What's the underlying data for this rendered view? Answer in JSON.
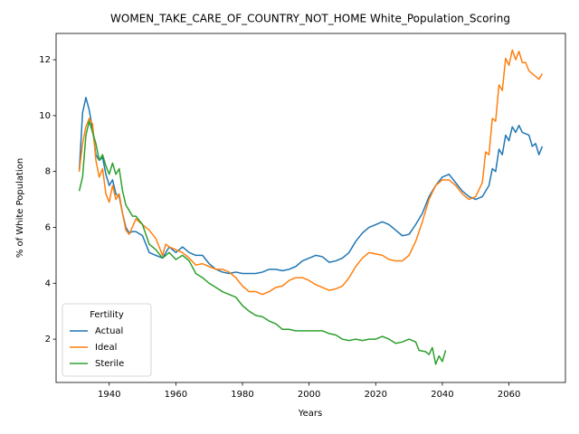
{
  "chart_data": {
    "type": "line",
    "title": "WOMEN_TAKE_CARE_OF_COUNTRY_NOT_HOME White_Population_Scoring",
    "x_label": "Years",
    "y_label": "% of White Population",
    "legend_title": "Fertility",
    "legend_position": "lower left",
    "grid": false,
    "xlim": [
      1924.05,
      2076.95
    ],
    "ylim": [
      0.45,
      12.94
    ],
    "xticks": [
      1940,
      1960,
      1980,
      2000,
      2020,
      2040,
      2060
    ],
    "yticks": [
      2,
      4,
      6,
      8,
      10,
      12
    ],
    "series": [
      {
        "name": "Actual",
        "color": "#1f77b4",
        "x": [
          1931,
          1932,
          1933,
          1934,
          1935,
          1936,
          1937,
          1938,
          1939,
          1940,
          1941,
          1942,
          1943,
          1944,
          1945,
          1946,
          1947,
          1948,
          1950,
          1952,
          1954,
          1956,
          1958,
          1960,
          1962,
          1964,
          1966,
          1968,
          1970,
          1972,
          1974,
          1976,
          1978,
          1980,
          1982,
          1984,
          1986,
          1988,
          1990,
          1992,
          1994,
          1996,
          1998,
          2000,
          2002,
          2004,
          2006,
          2008,
          2010,
          2012,
          2014,
          2016,
          2018,
          2020,
          2022,
          2024,
          2026,
          2028,
          2030,
          2032,
          2034,
          2036,
          2038,
          2040,
          2042,
          2044,
          2046,
          2048,
          2050,
          2052,
          2054,
          2055,
          2056,
          2057,
          2058,
          2059,
          2060,
          2061,
          2062,
          2063,
          2064,
          2066,
          2067,
          2068,
          2069,
          2070
        ],
        "values": [
          8.0,
          10.1,
          10.65,
          10.2,
          9.5,
          8.6,
          8.4,
          8.5,
          7.9,
          7.5,
          7.7,
          7.2,
          7.1,
          6.5,
          6.0,
          5.8,
          5.85,
          5.85,
          5.7,
          5.1,
          5.0,
          4.9,
          5.3,
          5.1,
          5.3,
          5.1,
          5.0,
          5.0,
          4.7,
          4.5,
          4.4,
          4.35,
          4.4,
          4.35,
          4.35,
          4.35,
          4.4,
          4.5,
          4.5,
          4.45,
          4.5,
          4.6,
          4.8,
          4.9,
          5.0,
          4.95,
          4.75,
          4.8,
          4.9,
          5.1,
          5.5,
          5.8,
          6.0,
          6.1,
          6.2,
          6.1,
          5.9,
          5.7,
          5.75,
          6.1,
          6.5,
          7.1,
          7.5,
          7.8,
          7.9,
          7.6,
          7.3,
          7.1,
          7.0,
          7.1,
          7.5,
          8.1,
          8.0,
          8.8,
          8.6,
          9.3,
          9.1,
          9.6,
          9.4,
          9.65,
          9.4,
          9.3,
          8.9,
          9.0,
          8.6,
          8.9
        ]
      },
      {
        "name": "Ideal",
        "color": "#ff7f0e",
        "x": [
          1931,
          1932,
          1933,
          1934,
          1935,
          1936,
          1937,
          1938,
          1939,
          1940,
          1941,
          1942,
          1943,
          1944,
          1945,
          1946,
          1948,
          1950,
          1952,
          1954,
          1956,
          1957,
          1958,
          1960,
          1962,
          1964,
          1966,
          1968,
          1970,
          1972,
          1974,
          1976,
          1978,
          1980,
          1982,
          1984,
          1986,
          1988,
          1990,
          1992,
          1994,
          1996,
          1998,
          2000,
          2002,
          2004,
          2006,
          2008,
          2010,
          2012,
          2014,
          2016,
          2018,
          2020,
          2022,
          2024,
          2026,
          2028,
          2030,
          2032,
          2034,
          2036,
          2038,
          2040,
          2042,
          2044,
          2046,
          2048,
          2050,
          2052,
          2053,
          2054,
          2055,
          2056,
          2057,
          2058,
          2059,
          2060,
          2061,
          2062,
          2063,
          2064,
          2065,
          2066,
          2068,
          2069,
          2070
        ],
        "values": [
          8.0,
          9.0,
          9.6,
          9.9,
          9.7,
          8.4,
          7.8,
          8.1,
          7.2,
          6.9,
          7.5,
          7.0,
          7.2,
          6.5,
          5.9,
          5.75,
          6.3,
          6.1,
          5.9,
          5.6,
          5.0,
          5.4,
          5.3,
          5.2,
          5.1,
          4.9,
          4.65,
          4.7,
          4.6,
          4.5,
          4.5,
          4.4,
          4.2,
          3.9,
          3.7,
          3.7,
          3.6,
          3.7,
          3.85,
          3.9,
          4.1,
          4.2,
          4.2,
          4.1,
          3.95,
          3.85,
          3.75,
          3.8,
          3.9,
          4.2,
          4.6,
          4.9,
          5.1,
          5.05,
          5.0,
          4.85,
          4.8,
          4.8,
          5.0,
          5.5,
          6.2,
          7.0,
          7.5,
          7.7,
          7.7,
          7.5,
          7.2,
          7.0,
          7.1,
          7.6,
          8.7,
          8.6,
          9.9,
          9.8,
          11.1,
          10.9,
          12.05,
          11.8,
          12.35,
          12.0,
          12.3,
          11.9,
          11.9,
          11.6,
          11.4,
          11.3,
          11.5
        ]
      },
      {
        "name": "Sterile",
        "color": "#2ca02c",
        "x": [
          1931,
          1932,
          1933,
          1934,
          1935,
          1936,
          1937,
          1938,
          1939,
          1940,
          1941,
          1942,
          1943,
          1944,
          1945,
          1946,
          1947,
          1948,
          1950,
          1952,
          1954,
          1956,
          1958,
          1960,
          1962,
          1964,
          1966,
          1968,
          1970,
          1972,
          1974,
          1976,
          1978,
          1980,
          1982,
          1984,
          1986,
          1988,
          1990,
          1992,
          1994,
          1996,
          1998,
          2000,
          2002,
          2004,
          2006,
          2008,
          2010,
          2012,
          2014,
          2016,
          2018,
          2020,
          2022,
          2024,
          2026,
          2028,
          2030,
          2032,
          2033,
          2035,
          2036,
          2037,
          2038,
          2039,
          2040,
          2041
        ],
        "values": [
          7.3,
          7.8,
          9.3,
          9.8,
          9.4,
          9.0,
          8.4,
          8.6,
          8.2,
          7.9,
          8.3,
          7.9,
          8.1,
          7.3,
          6.8,
          6.6,
          6.4,
          6.4,
          6.1,
          5.4,
          5.2,
          4.9,
          5.1,
          4.85,
          5.0,
          4.8,
          4.35,
          4.2,
          4.0,
          3.85,
          3.7,
          3.6,
          3.5,
          3.2,
          3.0,
          2.85,
          2.8,
          2.65,
          2.55,
          2.35,
          2.35,
          2.3,
          2.3,
          2.3,
          2.3,
          2.3,
          2.2,
          2.15,
          2.0,
          1.95,
          2.0,
          1.95,
          2.0,
          2.0,
          2.1,
          2.0,
          1.85,
          1.9,
          2.0,
          1.9,
          1.6,
          1.55,
          1.45,
          1.7,
          1.1,
          1.4,
          1.2,
          1.6
        ]
      }
    ]
  }
}
